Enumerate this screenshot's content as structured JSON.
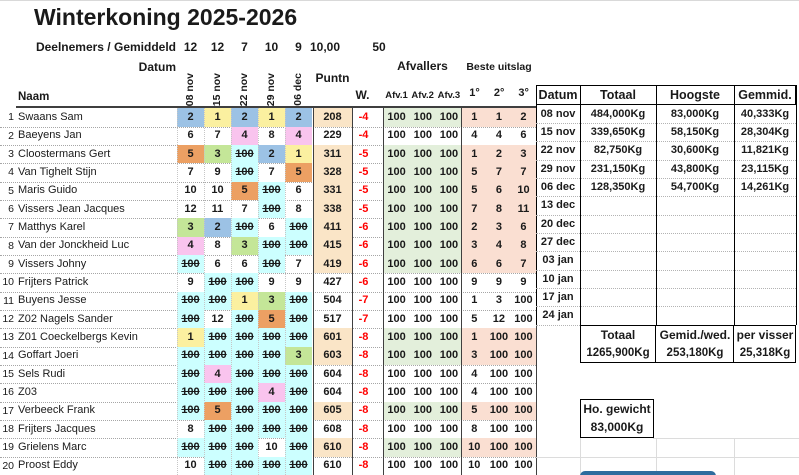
{
  "title": "Winterkoning 2025-2026",
  "stats": {
    "label": "Deelnemers / Gemiddeld",
    "per_date": [
      "12",
      "12",
      "7",
      "10",
      "9"
    ],
    "avg": "10,00",
    "extra": "50"
  },
  "headers": {
    "naam": "Naam",
    "datum": "Datum",
    "dates": [
      "08 nov",
      "15 nov",
      "22 nov",
      "29 nov",
      "06 dec"
    ],
    "puntn": "Puntn",
    "w": "W.",
    "afvallers": "Afvallers",
    "afv_cols": [
      "Afv.1",
      "Afv.2",
      "Afv.3"
    ],
    "beste": "Beste uitslag",
    "beste_cols": [
      "1°",
      "2°",
      "3°"
    ]
  },
  "colors": {
    "yellow": "#FBF0A0",
    "blue": "#9CC2E5",
    "green": "#C4E698",
    "pink": "#F9C4EE",
    "orange": "#ECA063",
    "cyan": "#CCFFFF",
    "none": "",
    "row_highlight_puntn": "#FAE5C7",
    "row_highlight_afv": "#E3EFDB",
    "row_highlight_beste": "#FADFD2",
    "negative": "#FF0000",
    "bar_blue": "#2E6C9E"
  },
  "rows": [
    {
      "rank": "1",
      "name": "Swaans Sam",
      "res": [
        {
          "v": "2",
          "c": "blue"
        },
        {
          "v": "1",
          "c": "yellow"
        },
        {
          "v": "2",
          "c": "blue"
        },
        {
          "v": "1",
          "c": "yellow"
        },
        {
          "v": "2",
          "c": "blue"
        }
      ],
      "puntn": "208",
      "w": "-4",
      "afv": [
        "100",
        "100",
        "100"
      ],
      "beste": [
        "1",
        "1",
        "2"
      ],
      "hl": true
    },
    {
      "rank": "2",
      "name": "Baeyens Jan",
      "res": [
        {
          "v": "6",
          "c": "none"
        },
        {
          "v": "7",
          "c": "none"
        },
        {
          "v": "4",
          "c": "pink"
        },
        {
          "v": "8",
          "c": "none"
        },
        {
          "v": "4",
          "c": "pink"
        }
      ],
      "puntn": "229",
      "w": "-4",
      "afv": [
        "100",
        "100",
        "100"
      ],
      "beste": [
        "4",
        "4",
        "6"
      ],
      "hl": false
    },
    {
      "rank": "3",
      "name": "Cloostermans Gert",
      "res": [
        {
          "v": "5",
          "c": "orange"
        },
        {
          "v": "3",
          "c": "green"
        },
        {
          "v": "100",
          "c": "cyan"
        },
        {
          "v": "2",
          "c": "blue"
        },
        {
          "v": "1",
          "c": "yellow"
        }
      ],
      "puntn": "311",
      "w": "-5",
      "afv": [
        "100",
        "100",
        "100"
      ],
      "beste": [
        "1",
        "2",
        "3"
      ],
      "hl": true
    },
    {
      "rank": "4",
      "name": "Van Tighelt Stijn",
      "res": [
        {
          "v": "7",
          "c": "none"
        },
        {
          "v": "9",
          "c": "none"
        },
        {
          "v": "100",
          "c": "cyan"
        },
        {
          "v": "7",
          "c": "none"
        },
        {
          "v": "5",
          "c": "orange"
        }
      ],
      "puntn": "328",
      "w": "-5",
      "afv": [
        "100",
        "100",
        "100"
      ],
      "beste": [
        "5",
        "7",
        "7"
      ],
      "hl": true
    },
    {
      "rank": "5",
      "name": "Maris Guido",
      "res": [
        {
          "v": "10",
          "c": "none"
        },
        {
          "v": "10",
          "c": "none"
        },
        {
          "v": "5",
          "c": "orange"
        },
        {
          "v": "100",
          "c": "cyan"
        },
        {
          "v": "6",
          "c": "none"
        }
      ],
      "puntn": "331",
      "w": "-5",
      "afv": [
        "100",
        "100",
        "100"
      ],
      "beste": [
        "5",
        "6",
        "10"
      ],
      "hl": true
    },
    {
      "rank": "6",
      "name": "Vissers Jean Jacques",
      "res": [
        {
          "v": "12",
          "c": "none"
        },
        {
          "v": "11",
          "c": "none"
        },
        {
          "v": "7",
          "c": "none"
        },
        {
          "v": "100",
          "c": "cyan"
        },
        {
          "v": "8",
          "c": "none"
        }
      ],
      "puntn": "338",
      "w": "-5",
      "afv": [
        "100",
        "100",
        "100"
      ],
      "beste": [
        "7",
        "8",
        "11"
      ],
      "hl": true
    },
    {
      "rank": "7",
      "name": "Matthys Karel",
      "res": [
        {
          "v": "3",
          "c": "green"
        },
        {
          "v": "2",
          "c": "blue"
        },
        {
          "v": "100",
          "c": "cyan"
        },
        {
          "v": "6",
          "c": "none"
        },
        {
          "v": "100",
          "c": "cyan"
        }
      ],
      "puntn": "411",
      "w": "-6",
      "afv": [
        "100",
        "100",
        "100"
      ],
      "beste": [
        "2",
        "3",
        "6"
      ],
      "hl": true
    },
    {
      "rank": "8",
      "name": "Van der Jonckheid  Luc",
      "res": [
        {
          "v": "4",
          "c": "pink"
        },
        {
          "v": "8",
          "c": "none"
        },
        {
          "v": "3",
          "c": "green"
        },
        {
          "v": "100",
          "c": "cyan"
        },
        {
          "v": "100",
          "c": "cyan"
        }
      ],
      "puntn": "415",
      "w": "-6",
      "afv": [
        "100",
        "100",
        "100"
      ],
      "beste": [
        "3",
        "4",
        "8"
      ],
      "hl": true
    },
    {
      "rank": "9",
      "name": "Vissers Johny",
      "res": [
        {
          "v": "100",
          "c": "cyan"
        },
        {
          "v": "6",
          "c": "none"
        },
        {
          "v": "6",
          "c": "none"
        },
        {
          "v": "100",
          "c": "cyan"
        },
        {
          "v": "7",
          "c": "none"
        }
      ],
      "puntn": "419",
      "w": "-6",
      "afv": [
        "100",
        "100",
        "100"
      ],
      "beste": [
        "6",
        "6",
        "7"
      ],
      "hl": true
    },
    {
      "rank": "10",
      "name": "Frijters Patrick",
      "res": [
        {
          "v": "9",
          "c": "none"
        },
        {
          "v": "100",
          "c": "cyan"
        },
        {
          "v": "100",
          "c": "cyan"
        },
        {
          "v": "9",
          "c": "none"
        },
        {
          "v": "9",
          "c": "none"
        }
      ],
      "puntn": "427",
      "w": "-6",
      "afv": [
        "100",
        "100",
        "100"
      ],
      "beste": [
        "9",
        "9",
        "9"
      ],
      "hl": false
    },
    {
      "rank": "11",
      "name": "Buyens Jesse",
      "res": [
        {
          "v": "100",
          "c": "cyan"
        },
        {
          "v": "100",
          "c": "cyan"
        },
        {
          "v": "1",
          "c": "yellow"
        },
        {
          "v": "3",
          "c": "green"
        },
        {
          "v": "100",
          "c": "cyan"
        }
      ],
      "puntn": "504",
      "w": "-7",
      "afv": [
        "100",
        "100",
        "100"
      ],
      "beste": [
        "1",
        "3",
        "100"
      ],
      "hl": false
    },
    {
      "rank": "12",
      "name": "Z02 Nagels Sander",
      "res": [
        {
          "v": "100",
          "c": "cyan"
        },
        {
          "v": "12",
          "c": "none"
        },
        {
          "v": "100",
          "c": "cyan"
        },
        {
          "v": "5",
          "c": "orange"
        },
        {
          "v": "100",
          "c": "cyan"
        }
      ],
      "puntn": "517",
      "w": "-7",
      "afv": [
        "100",
        "100",
        "100"
      ],
      "beste": [
        "5",
        "12",
        "100"
      ],
      "hl": false
    },
    {
      "rank": "13",
      "name": "Z01 Coeckelbergs Kevin",
      "res": [
        {
          "v": "1",
          "c": "yellow"
        },
        {
          "v": "100",
          "c": "cyan"
        },
        {
          "v": "100",
          "c": "cyan"
        },
        {
          "v": "100",
          "c": "cyan"
        },
        {
          "v": "100",
          "c": "cyan"
        }
      ],
      "puntn": "601",
      "w": "-8",
      "afv": [
        "100",
        "100",
        "100"
      ],
      "beste": [
        "1",
        "100",
        "100"
      ],
      "hl": true
    },
    {
      "rank": "14",
      "name": "Goffart Joeri",
      "res": [
        {
          "v": "100",
          "c": "cyan"
        },
        {
          "v": "100",
          "c": "cyan"
        },
        {
          "v": "100",
          "c": "cyan"
        },
        {
          "v": "100",
          "c": "cyan"
        },
        {
          "v": "3",
          "c": "green"
        }
      ],
      "puntn": "603",
      "w": "-8",
      "afv": [
        "100",
        "100",
        "100"
      ],
      "beste": [
        "3",
        "100",
        "100"
      ],
      "hl": true
    },
    {
      "rank": "15",
      "name": "Sels Rudi",
      "res": [
        {
          "v": "100",
          "c": "cyan"
        },
        {
          "v": "4",
          "c": "pink"
        },
        {
          "v": "100",
          "c": "cyan"
        },
        {
          "v": "100",
          "c": "cyan"
        },
        {
          "v": "100",
          "c": "cyan"
        }
      ],
      "puntn": "604",
      "w": "-8",
      "afv": [
        "100",
        "100",
        "100"
      ],
      "beste": [
        "4",
        "100",
        "100"
      ],
      "hl": false
    },
    {
      "rank": "16",
      "name": "Z03",
      "res": [
        {
          "v": "100",
          "c": "cyan"
        },
        {
          "v": "100",
          "c": "cyan"
        },
        {
          "v": "100",
          "c": "cyan"
        },
        {
          "v": "4",
          "c": "pink"
        },
        {
          "v": "100",
          "c": "cyan"
        }
      ],
      "puntn": "604",
      "w": "-8",
      "afv": [
        "100",
        "100",
        "100"
      ],
      "beste": [
        "4",
        "100",
        "100"
      ],
      "hl": false
    },
    {
      "rank": "17",
      "name": "Verbeeck Frank",
      "res": [
        {
          "v": "100",
          "c": "cyan"
        },
        {
          "v": "5",
          "c": "orange"
        },
        {
          "v": "100",
          "c": "cyan"
        },
        {
          "v": "100",
          "c": "cyan"
        },
        {
          "v": "100",
          "c": "cyan"
        }
      ],
      "puntn": "605",
      "w": "-8",
      "afv": [
        "100",
        "100",
        "100"
      ],
      "beste": [
        "5",
        "100",
        "100"
      ],
      "hl": true
    },
    {
      "rank": "18",
      "name": "Frijters Jacques",
      "res": [
        {
          "v": "8",
          "c": "none"
        },
        {
          "v": "100",
          "c": "cyan"
        },
        {
          "v": "100",
          "c": "cyan"
        },
        {
          "v": "100",
          "c": "cyan"
        },
        {
          "v": "100",
          "c": "cyan"
        }
      ],
      "puntn": "608",
      "w": "-8",
      "afv": [
        "100",
        "100",
        "100"
      ],
      "beste": [
        "8",
        "100",
        "100"
      ],
      "hl": false
    },
    {
      "rank": "19",
      "name": "Grielens Marc",
      "res": [
        {
          "v": "100",
          "c": "cyan"
        },
        {
          "v": "100",
          "c": "cyan"
        },
        {
          "v": "100",
          "c": "cyan"
        },
        {
          "v": "10",
          "c": "none"
        },
        {
          "v": "100",
          "c": "cyan"
        }
      ],
      "puntn": "610",
      "w": "-8",
      "afv": [
        "100",
        "100",
        "100"
      ],
      "beste": [
        "10",
        "100",
        "100"
      ],
      "hl": true
    },
    {
      "rank": "20",
      "name": "Proost Eddy",
      "res": [
        {
          "v": "10",
          "c": "none"
        },
        {
          "v": "100",
          "c": "cyan"
        },
        {
          "v": "100",
          "c": "cyan"
        },
        {
          "v": "100",
          "c": "cyan"
        },
        {
          "v": "100",
          "c": "cyan"
        }
      ],
      "puntn": "610",
      "w": "-8",
      "afv": [
        "100",
        "100",
        "100"
      ],
      "beste": [
        "10",
        "100",
        "100"
      ],
      "hl": false
    }
  ],
  "right_table": {
    "headers": [
      "Datum",
      "Totaal",
      "Hoogste",
      "Gemmid."
    ],
    "rows": [
      {
        "datum": "08 nov",
        "totaal": "484,000Kg",
        "hoogste": "83,000Kg",
        "gemmid": "40,333Kg"
      },
      {
        "datum": "15 nov",
        "totaal": "339,650Kg",
        "hoogste": "58,150Kg",
        "gemmid": "28,304Kg"
      },
      {
        "datum": "22 nov",
        "totaal": "82,750Kg",
        "hoogste": "30,600Kg",
        "gemmid": "11,821Kg"
      },
      {
        "datum": "29 nov",
        "totaal": "231,150Kg",
        "hoogste": "43,800Kg",
        "gemmid": "23,115Kg"
      },
      {
        "datum": "06 dec",
        "totaal": "128,350Kg",
        "hoogste": "54,700Kg",
        "gemmid": "14,261Kg"
      },
      {
        "datum": "13 dec",
        "totaal": "",
        "hoogste": "",
        "gemmid": ""
      },
      {
        "datum": "20 dec",
        "totaal": "",
        "hoogste": "",
        "gemmid": ""
      },
      {
        "datum": "27 dec",
        "totaal": "",
        "hoogste": "",
        "gemmid": ""
      },
      {
        "datum": "03 jan",
        "totaal": "",
        "hoogste": "",
        "gemmid": ""
      },
      {
        "datum": "10 jan",
        "totaal": "",
        "hoogste": "",
        "gemmid": ""
      },
      {
        "datum": "17 jan",
        "totaal": "",
        "hoogste": "",
        "gemmid": ""
      },
      {
        "datum": "24 jan",
        "totaal": "",
        "hoogste": "",
        "gemmid": ""
      }
    ],
    "summary": {
      "labels": [
        "Totaal",
        "Gemid./wed.",
        "per visser"
      ],
      "values": [
        "1265,900Kg",
        "253,180Kg",
        "25,318Kg"
      ]
    }
  },
  "weight_box": {
    "label": "Ho. gewicht",
    "value": "83,000Kg"
  }
}
